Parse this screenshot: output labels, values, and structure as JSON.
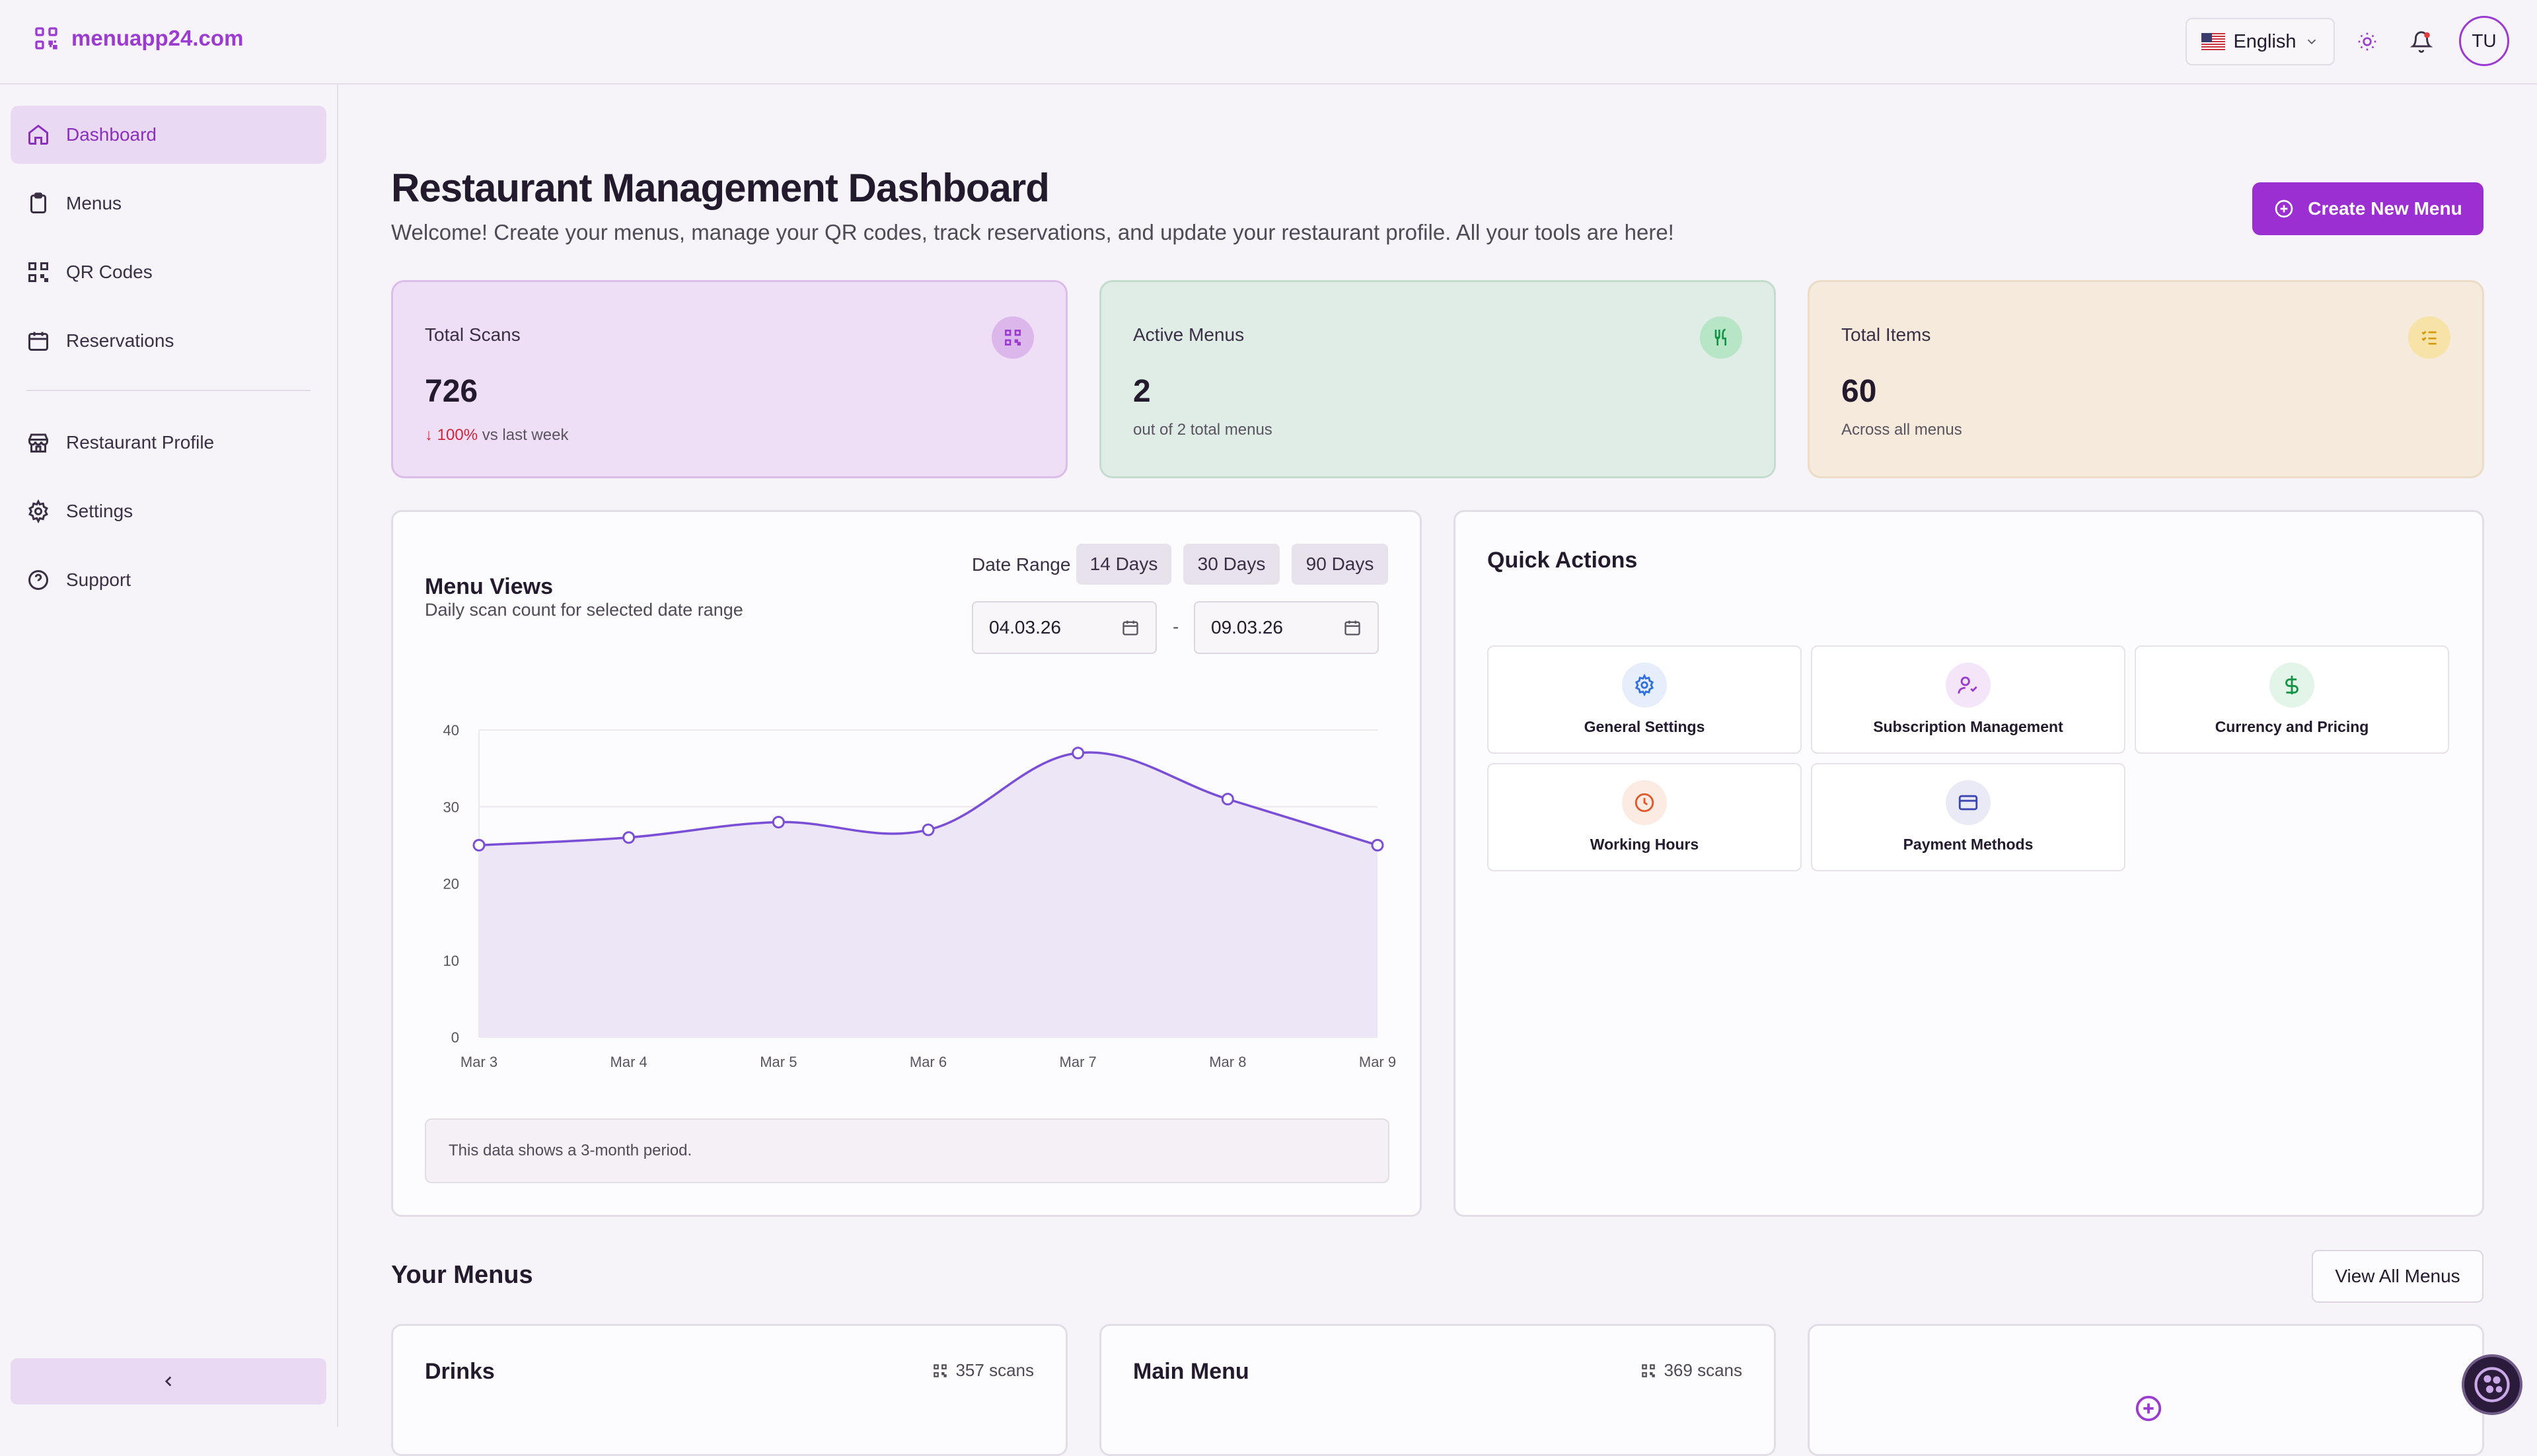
{
  "brand": {
    "name": "menuapp24.com",
    "accent": "#9b2fd1"
  },
  "header": {
    "language": "English",
    "avatar_initials": "TU"
  },
  "sidebar": {
    "items": [
      {
        "label": "Dashboard",
        "icon": "home-icon"
      },
      {
        "label": "Menus",
        "icon": "clipboard-icon"
      },
      {
        "label": "QR Codes",
        "icon": "qr-code-icon"
      },
      {
        "label": "Reservations",
        "icon": "calendar-icon"
      },
      {
        "label": "Restaurant Profile",
        "icon": "store-icon"
      },
      {
        "label": "Settings",
        "icon": "gear-icon"
      },
      {
        "label": "Support",
        "icon": "help-circle-icon"
      }
    ]
  },
  "page": {
    "title": "Restaurant Management Dashboard",
    "subtitle": "Welcome! Create your menus, manage your QR codes, track reservations, and update your restaurant profile. All your tools are here!",
    "create_button": "Create New Menu"
  },
  "stats": {
    "total_scans": {
      "label": "Total Scans",
      "value": "726",
      "change": "↓ 100%",
      "change_suffix": "vs last week"
    },
    "active_menus": {
      "label": "Active Menus",
      "value": "2",
      "note": "out of 2 total menus"
    },
    "total_items": {
      "label": "Total Items",
      "value": "60",
      "note": "Across all menus"
    }
  },
  "menu_views": {
    "title": "Menu Views",
    "subtitle": "Daily scan count for selected date range",
    "date_range_label": "Date Range",
    "range_buttons": [
      "14 Days",
      "30 Days",
      "90 Days"
    ],
    "start_date": "04.03.26",
    "end_date": "09.03.26",
    "date_separator": "-",
    "note": "This data shows a 3-month period."
  },
  "chart_data": {
    "type": "area",
    "x": [
      "Mar 3",
      "Mar 4",
      "Mar 5",
      "Mar 6",
      "Mar 7",
      "Mar 8",
      "Mar 9"
    ],
    "series": [
      {
        "values": [
          25,
          26,
          28,
          27,
          37,
          31,
          25
        ]
      }
    ],
    "ylim": [
      0,
      40
    ],
    "yticks": [
      "0",
      "10",
      "20",
      "30",
      "40"
    ],
    "grid": true,
    "color": "#7a4fd6"
  },
  "quick_actions": {
    "title": "Quick Actions",
    "items": [
      {
        "label": "General Settings",
        "icon": "gear-icon"
      },
      {
        "label": "Subscription Management",
        "icon": "user-check-icon"
      },
      {
        "label": "Currency and Pricing",
        "icon": "dollar-icon"
      },
      {
        "label": "Working Hours",
        "icon": "clock-icon"
      },
      {
        "label": "Payment Methods",
        "icon": "credit-card-icon"
      }
    ]
  },
  "your_menus": {
    "title": "Your Menus",
    "view_all": "View All Menus",
    "menus": [
      {
        "name": "Drinks",
        "scans": "357 scans"
      },
      {
        "name": "Main Menu",
        "scans": "369 scans"
      }
    ]
  }
}
